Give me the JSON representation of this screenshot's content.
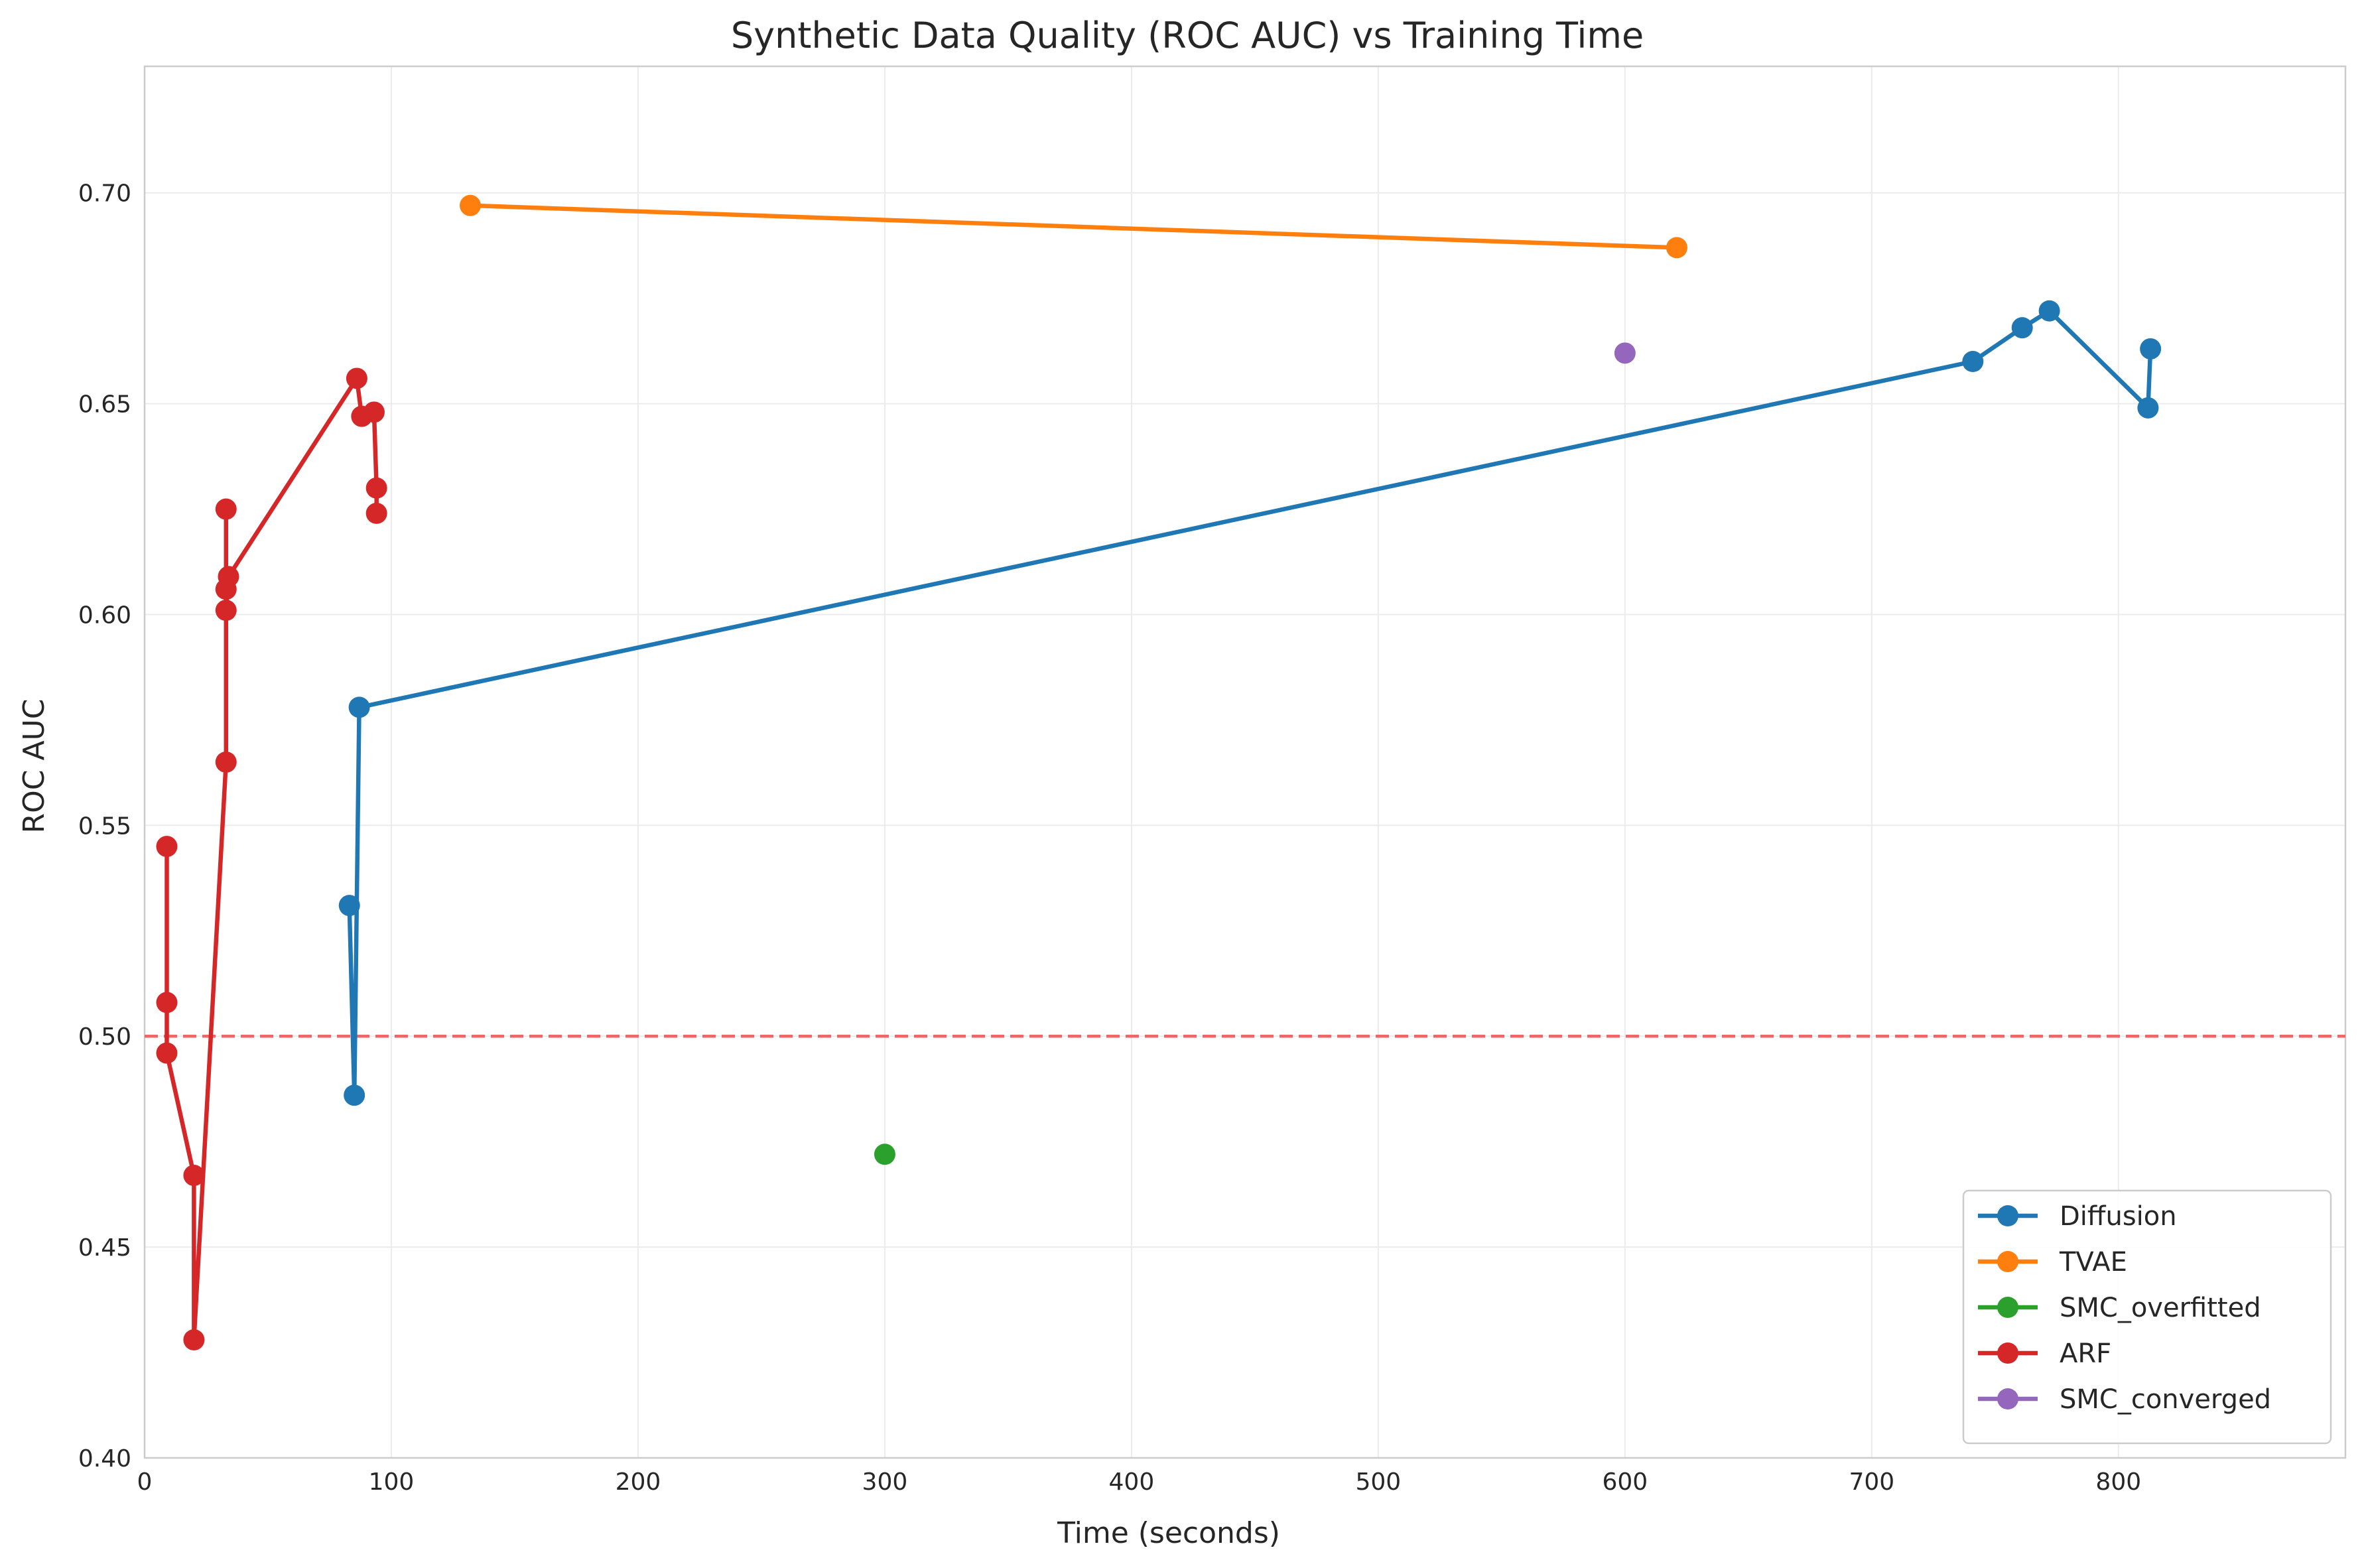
{
  "chart_data": {
    "type": "line",
    "title": "Synthetic Data Quality (ROC AUC) vs Training Time",
    "xlabel": "Time (seconds)",
    "ylabel": "ROC AUC",
    "xlim": [
      0,
      892
    ],
    "ylim": [
      0.4,
      0.73
    ],
    "x_ticks": [
      0,
      100,
      200,
      300,
      400,
      500,
      600,
      700,
      800
    ],
    "x_tick_labels": [
      "0",
      "100",
      "200",
      "300",
      "400",
      "500",
      "600",
      "700",
      "800"
    ],
    "y_ticks": [
      0.4,
      0.45,
      0.5,
      0.55,
      0.6,
      0.65,
      0.7
    ],
    "y_tick_labels": [
      "0.40",
      "0.45",
      "0.50",
      "0.55",
      "0.60",
      "0.65",
      "0.70"
    ],
    "grid": true,
    "reference_line": {
      "y": 0.5,
      "style": "dashed",
      "color": "#ee6666"
    },
    "legend_position": "lower-right",
    "series": [
      {
        "name": "Diffusion",
        "color": "#1f77b4",
        "points": [
          [
            83,
            0.531
          ],
          [
            85,
            0.486
          ],
          [
            87,
            0.578
          ],
          [
            741,
            0.66
          ],
          [
            761,
            0.668
          ],
          [
            772,
            0.672
          ],
          [
            812,
            0.649
          ],
          [
            813,
            0.663
          ]
        ]
      },
      {
        "name": "TVAE",
        "color": "#ff7f0e",
        "points": [
          [
            132,
            0.697
          ],
          [
            621,
            0.687
          ]
        ]
      },
      {
        "name": "SMC_overfitted",
        "color": "#2ca02c",
        "points": [
          [
            300,
            0.472
          ]
        ]
      },
      {
        "name": "ARF",
        "color": "#d62728",
        "points": [
          [
            9,
            0.508
          ],
          [
            9,
            0.545
          ],
          [
            9,
            0.496
          ],
          [
            20,
            0.467
          ],
          [
            20,
            0.428
          ],
          [
            33,
            0.565
          ],
          [
            33,
            0.606
          ],
          [
            33,
            0.625
          ],
          [
            33,
            0.601
          ],
          [
            34,
            0.609
          ],
          [
            86,
            0.656
          ],
          [
            88,
            0.647
          ],
          [
            93,
            0.648
          ],
          [
            94,
            0.63
          ],
          [
            94,
            0.624
          ]
        ]
      },
      {
        "name": "SMC_converged",
        "color": "#9467bd",
        "points": [
          [
            600,
            0.662
          ]
        ]
      }
    ]
  }
}
